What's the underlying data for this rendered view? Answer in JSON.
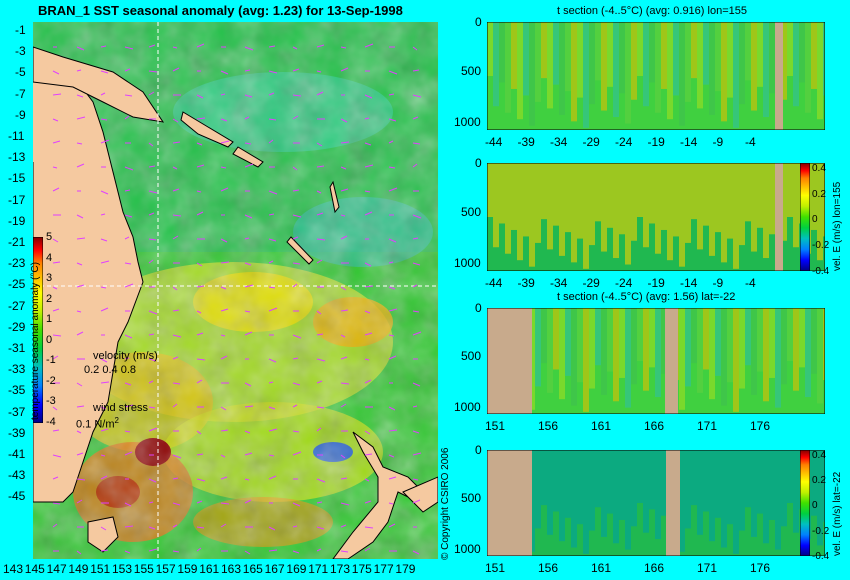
{
  "map": {
    "title": "BRAN_1  SST seasonal anomaly (avg: 1.23) for 13-Sep-1998",
    "lat_ticks": [
      "-1",
      "-3",
      "-5",
      "-7",
      "-9",
      "-11",
      "-13",
      "-15",
      "-17",
      "-19",
      "-21",
      "-23",
      "-25",
      "-27",
      "-29",
      "-31",
      "-33",
      "-35",
      "-37",
      "-39",
      "-41",
      "-43",
      "-45"
    ],
    "lon_ticks": [
      "143",
      "145",
      "147",
      "149",
      "151",
      "153",
      "155",
      "157",
      "159",
      "161",
      "163",
      "165",
      "167",
      "169",
      "171",
      "173",
      "175",
      "177",
      "179"
    ],
    "colorbar": {
      "ticks": [
        "5",
        "4",
        "3",
        "2",
        "1",
        "0",
        "-1",
        "-2",
        "-3",
        "-4"
      ],
      "label": "temperature seasonal anomaly (°C)",
      "colors": [
        "#000080",
        "#0000ff",
        "#0080ff",
        "#00c0c0",
        "#00d040",
        "#40e000",
        "#c0f000",
        "#ffff00",
        "#ffc000",
        "#ff8000",
        "#ff0000",
        "#a00000",
        "#800000"
      ]
    },
    "velocity_legend": {
      "title": "velocity (m/s)",
      "values": "0.2 0.4 0.8"
    },
    "wind_legend": {
      "title": "wind stress",
      "value": "0.1 N/m",
      "sup": "2"
    },
    "copyright": "© Copyright CSIRO 2006"
  },
  "panels": [
    {
      "title": "t section (-4..5°C) (avg: 0.916) lon=155",
      "x_ticks": [
        "-44",
        "-39",
        "-34",
        "-29",
        "-24",
        "-19",
        "-14",
        "-9",
        "-4"
      ],
      "y_ticks": [
        "0",
        "500",
        "1000"
      ]
    },
    {
      "title": "",
      "x_ticks": [
        "-44",
        "-39",
        "-34",
        "-29",
        "-24",
        "-19",
        "-14",
        "-9",
        "-4"
      ],
      "y_ticks": [
        "0",
        "500",
        "1000"
      ],
      "colorbar_ticks": [
        "0.4",
        "0.2",
        "0",
        "-0.2",
        "-0.4"
      ],
      "side_label": "vel. E (m/s) lon=155"
    },
    {
      "title": "t section (-4..5°C) (avg: 1.56) lat=-22",
      "x_ticks": [
        "151",
        "156",
        "161",
        "166",
        "171",
        "176"
      ],
      "y_ticks": [
        "0",
        "500",
        "1000"
      ]
    },
    {
      "title": "",
      "x_ticks": [
        "151",
        "156",
        "161",
        "166",
        "171",
        "176"
      ],
      "y_ticks": [
        "0",
        "500",
        "1000"
      ],
      "colorbar_ticks": [
        "0.4",
        "0.2",
        "0",
        "-0.2",
        "-0.4"
      ],
      "side_label": "vel. E (m/s) lat=-22"
    }
  ]
}
